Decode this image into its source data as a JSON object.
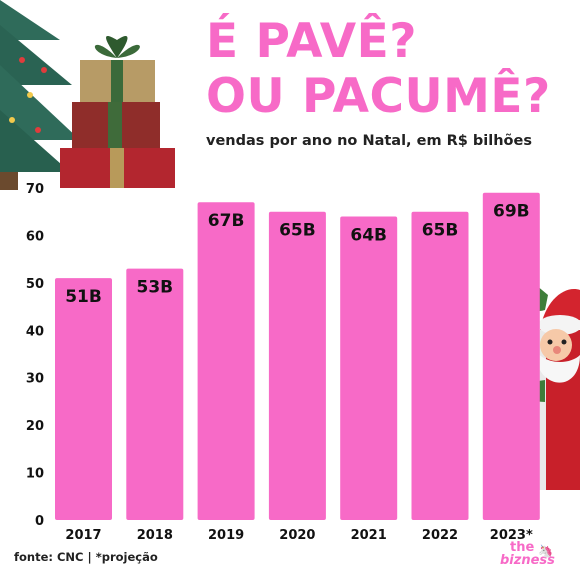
{
  "header": {
    "title_line1": "É PAVÊ?",
    "title_line2": "OU PACUMÊ?",
    "subtitle": "vendas por ano no Natal, em R$ bilhões"
  },
  "footer": {
    "source": "fonte: CNC | *projeção",
    "brand_the": "the",
    "brand_name": "bizness"
  },
  "colors": {
    "bar": "#f76ac7",
    "title": "#f76ac7",
    "text": "#111111"
  },
  "icons": [
    "christmas-tree-icon",
    "gift-stack-icon",
    "santa-claus-icon",
    "unicorn-icon"
  ],
  "chart_data": {
    "type": "bar",
    "title": "É PAVÊ? OU PACUMÊ?",
    "subtitle": "vendas por ano no Natal, em R$ bilhões",
    "categories": [
      "2017",
      "2018",
      "2019",
      "2020",
      "2021",
      "2022",
      "2023*"
    ],
    "values": [
      51,
      53,
      67,
      65,
      64,
      65,
      69
    ],
    "data_labels": [
      "51B",
      "53B",
      "67B",
      "65B",
      "64B",
      "65B",
      "69B"
    ],
    "y_ticks": [
      "0",
      "10",
      "20",
      "30",
      "40",
      "50",
      "60",
      "70"
    ],
    "ylim": [
      0,
      70
    ],
    "grid": false,
    "legend": "none"
  }
}
